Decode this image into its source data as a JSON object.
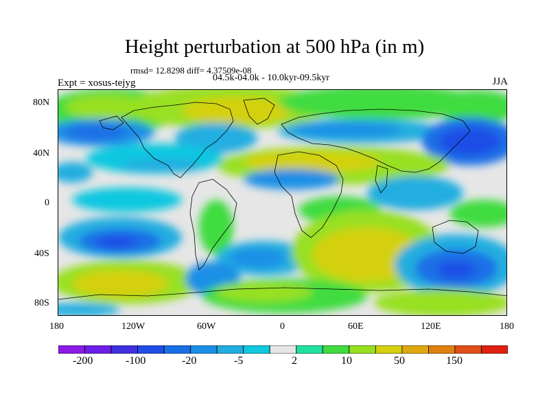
{
  "title": "Height perturbation at 500 hPa (in m)",
  "stats": "rmsd= 12.8298 diff= 4.37509e-08",
  "period": "04.5k-04.0k - 10.0kyr-09.5kyr",
  "experiment": "Expt = xosus-tejyg",
  "season": "JJA",
  "map": {
    "projection": "cylindrical equidistant",
    "variable": "500 hPa geopotential height perturbation",
    "y_ticks": [
      "80N",
      "40N",
      "0",
      "40S",
      "80S"
    ],
    "x_ticks": [
      "180",
      "120W",
      "60W",
      "0",
      "60E",
      "120E",
      "180"
    ]
  },
  "colorbar": {
    "labels": [
      "-200",
      "-100",
      "-20",
      "-5",
      "2",
      "10",
      "50",
      "150"
    ],
    "colors": [
      "#8c1ae6",
      "#6b1ee8",
      "#4030e0",
      "#1e4ee6",
      "#1a6fe6",
      "#1a8fe6",
      "#20aee0",
      "#10c8e0",
      "#e6e6e6",
      "#20e0a0",
      "#40dc40",
      "#98e020",
      "#d4d010",
      "#e0a810",
      "#e08010",
      "#e05018",
      "#e02010"
    ]
  }
}
